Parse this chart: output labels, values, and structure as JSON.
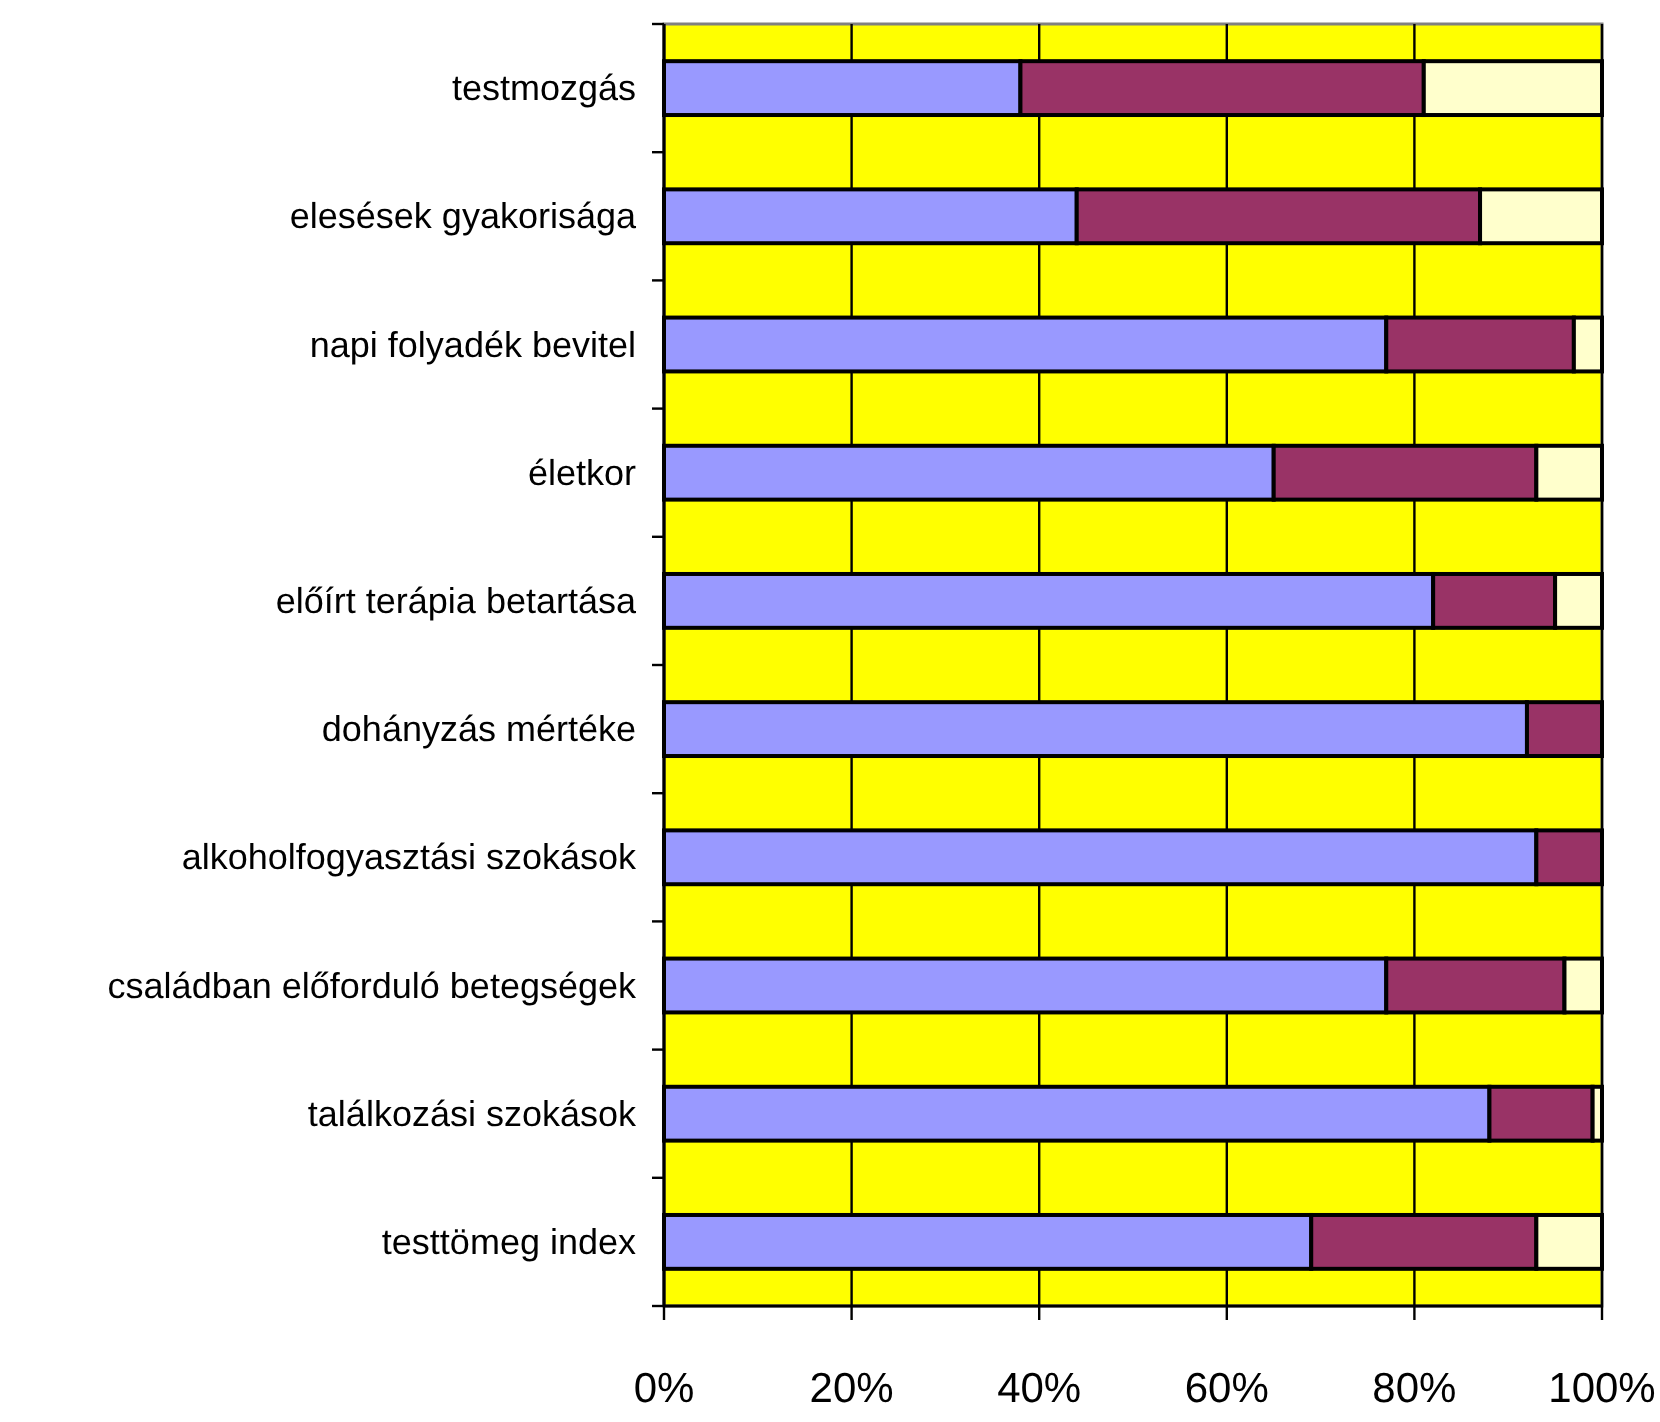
{
  "chart_data": {
    "type": "bar",
    "orientation": "horizontal",
    "stacked": true,
    "categories": [
      "testmozgás",
      "elesések gyakorisága",
      "napi folyadék bevitel",
      "életkor",
      "előírt terápia betartása",
      "dohányzás mértéke",
      "alkoholfogyasztási szokások",
      "családban előforduló betegségek",
      "találkozási szokások",
      "testtömeg index"
    ],
    "series": [
      {
        "color": "#9999ff",
        "values": [
          38,
          44,
          77,
          65,
          82,
          92,
          93,
          77,
          88,
          69
        ]
      },
      {
        "color": "#993366",
        "values": [
          43,
          43,
          20,
          28,
          13,
          8,
          7,
          19,
          11,
          24
        ]
      },
      {
        "color": "#ffffcc",
        "values": [
          19,
          13,
          3,
          7,
          5,
          0,
          0,
          4,
          1,
          7
        ]
      }
    ],
    "xlim": [
      0,
      100
    ],
    "xticks": [
      {
        "value": 0,
        "label": "0%"
      },
      {
        "value": 20,
        "label": "20%"
      },
      {
        "value": 40,
        "label": "40%"
      },
      {
        "value": 60,
        "label": "60%"
      },
      {
        "value": 80,
        "label": "80%"
      },
      {
        "value": 100,
        "label": "100%"
      }
    ],
    "grid": "x"
  }
}
